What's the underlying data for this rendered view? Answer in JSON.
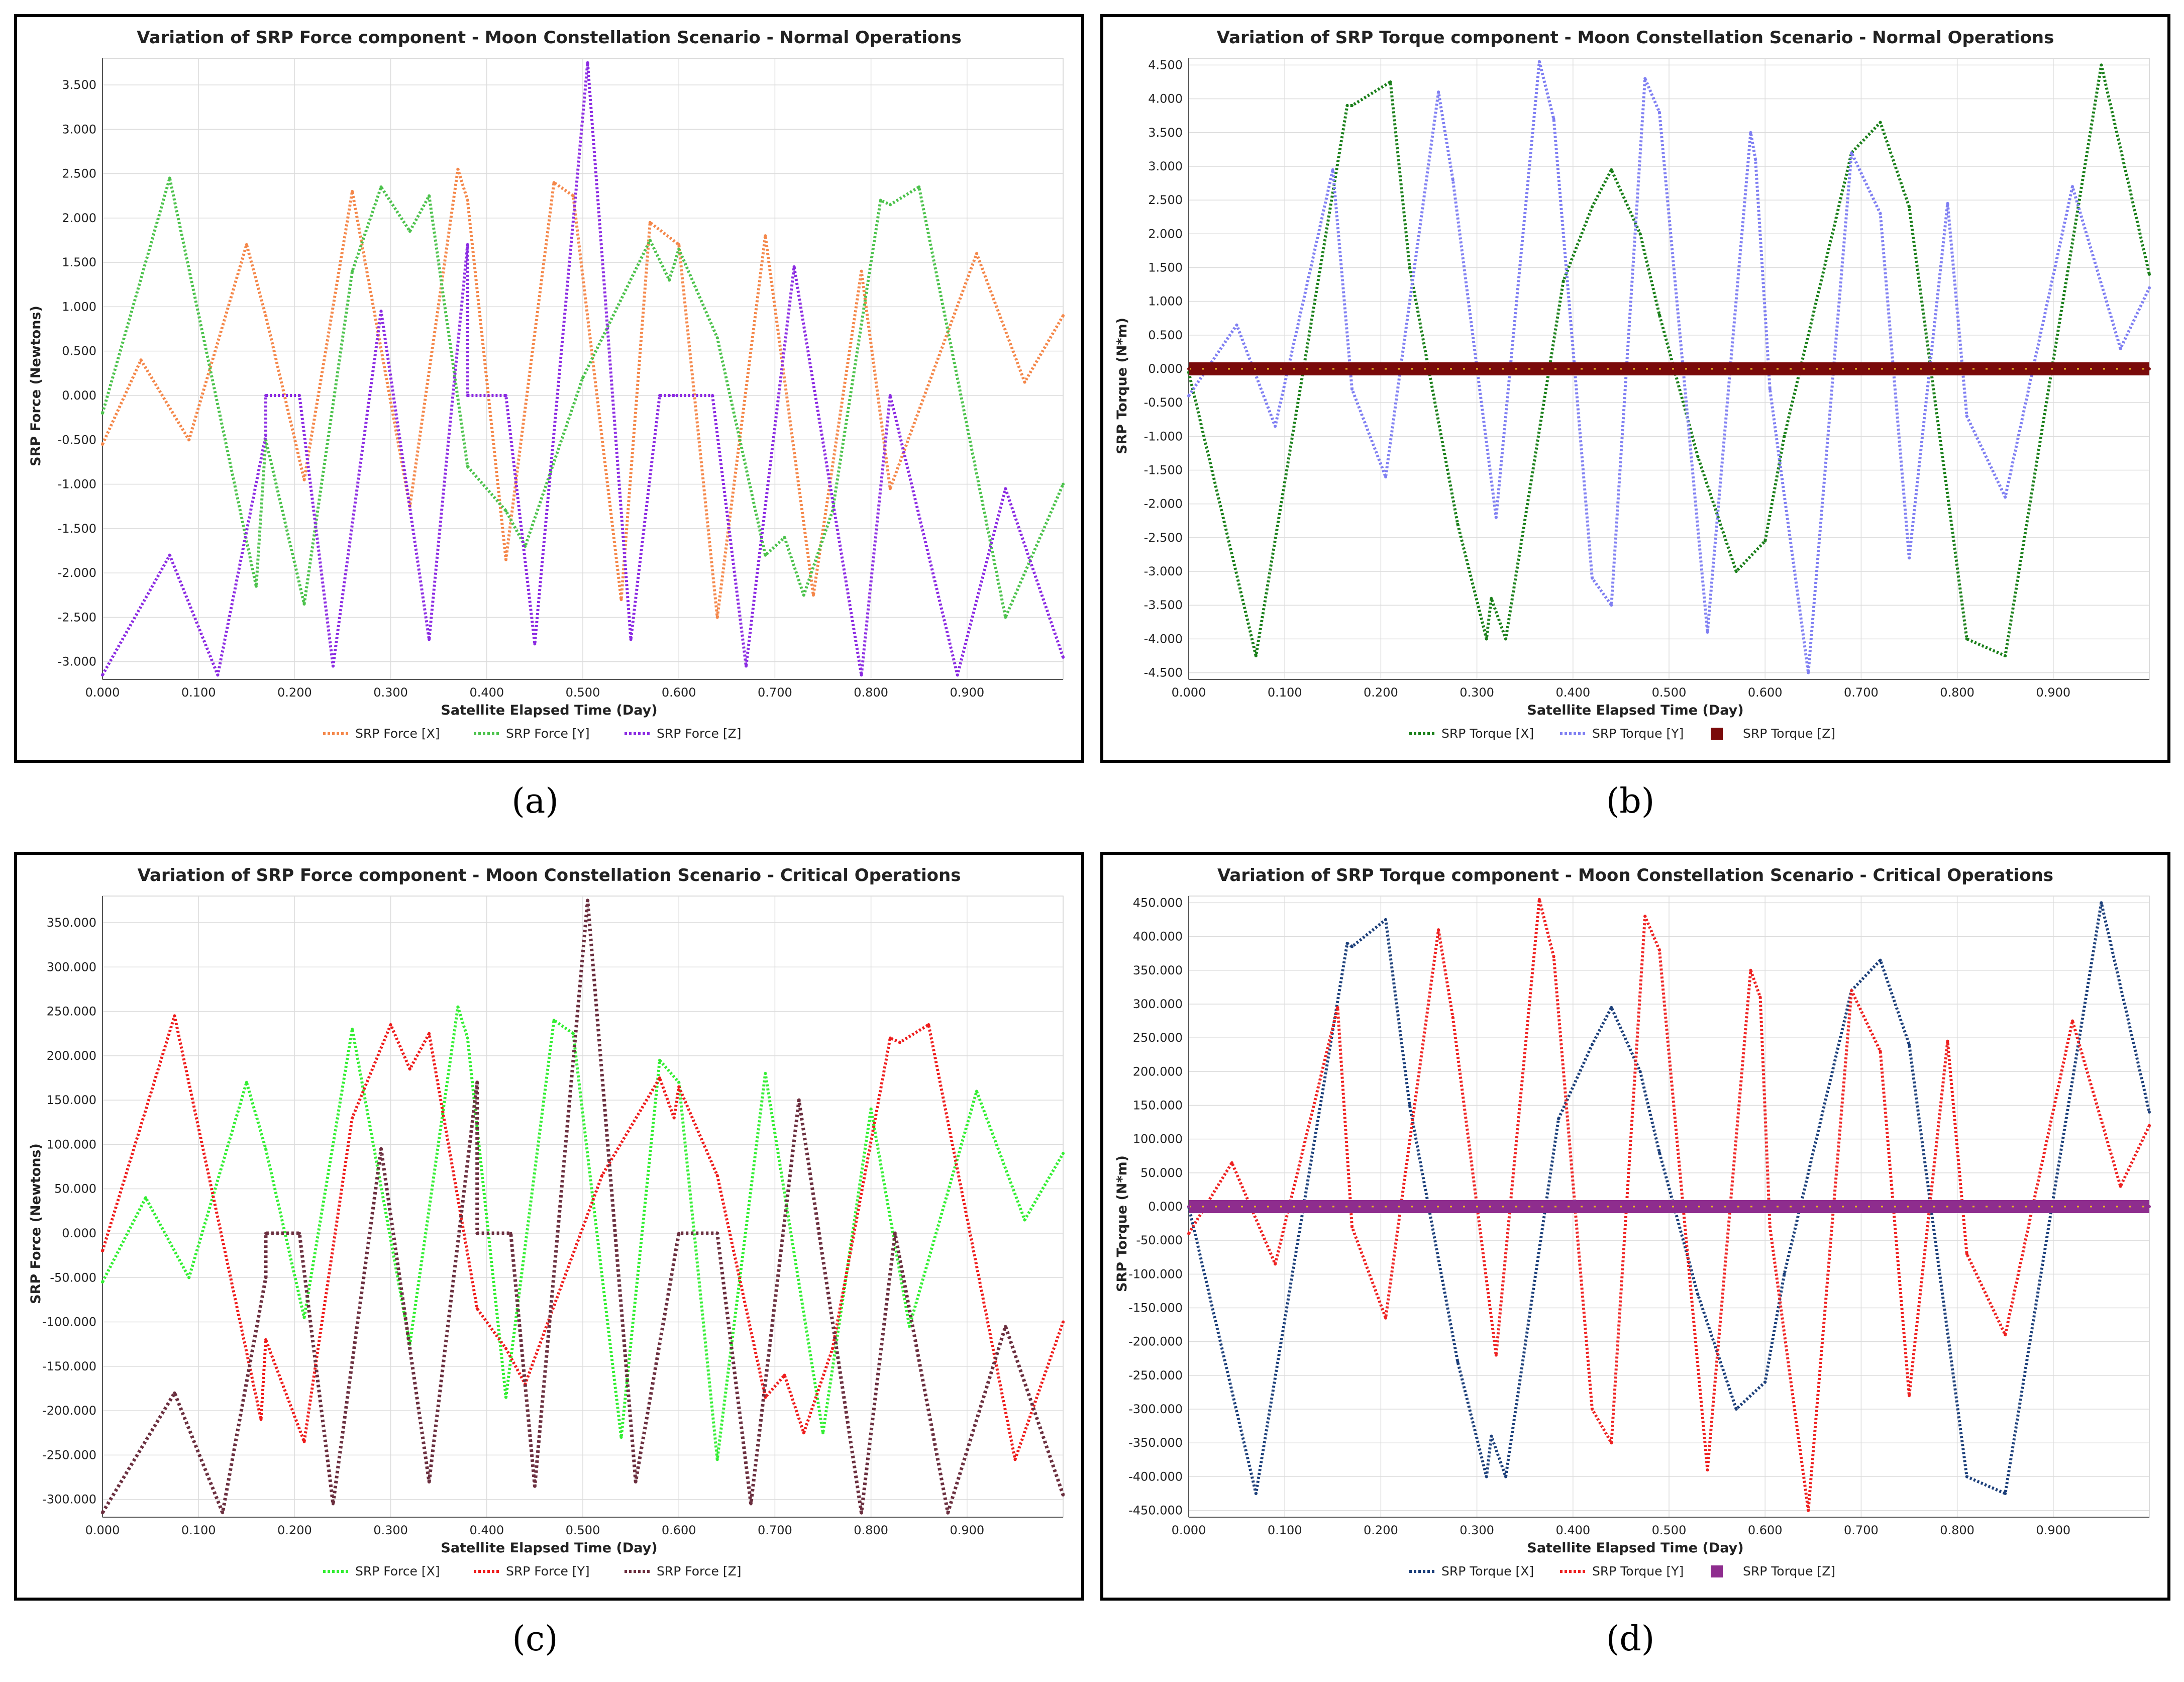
{
  "panel_labels": [
    "(a)",
    "(b)",
    "(c)",
    "(d)"
  ],
  "chart_data": [
    {
      "type": "line",
      "title": "Variation of SRP Force component - Moon Constellation Scenario - Normal Operations",
      "xlabel": "Satellite Elapsed Time (Day)",
      "ylabel": "SRP Force (Newtons)",
      "xlim": [
        0,
        1.0
      ],
      "ylim": [
        -3.2,
        3.8
      ],
      "x_ticks": [
        "0.000",
        "0.100",
        "0.200",
        "0.300",
        "0.400",
        "0.500",
        "0.600",
        "0.700",
        "0.800",
        "0.900"
      ],
      "x_tick_values": [
        0,
        0.1,
        0.2,
        0.3,
        0.4,
        0.5,
        0.6,
        0.7,
        0.8,
        0.9
      ],
      "y_ticks": [
        "-3.000",
        "-2.500",
        "-2.000",
        "-1.500",
        "-1.000",
        "-0.500",
        "0.000",
        "0.500",
        "1.000",
        "1.500",
        "2.000",
        "2.500",
        "3.000",
        "3.500"
      ],
      "y_tick_values": [
        -3,
        -2.5,
        -2,
        -1.5,
        -1,
        -0.5,
        0,
        0.5,
        1,
        1.5,
        2,
        2.5,
        3,
        3.5
      ],
      "series": [
        {
          "name": "SRP Force [X]",
          "color": "#f4874a",
          "marker": "dots",
          "x": [
            0.0,
            0.04,
            0.09,
            0.15,
            0.17,
            0.21,
            0.26,
            0.32,
            0.37,
            0.38,
            0.42,
            0.47,
            0.49,
            0.54,
            0.57,
            0.6,
            0.64,
            0.69,
            0.74,
            0.79,
            0.82,
            0.91,
            0.96,
            1.0
          ],
          "y": [
            -0.55,
            0.4,
            -0.5,
            1.7,
            0.9,
            -0.95,
            2.3,
            -1.25,
            2.55,
            2.2,
            -1.85,
            2.4,
            2.25,
            -2.3,
            1.95,
            1.7,
            -2.5,
            1.8,
            -2.25,
            1.4,
            -1.05,
            1.6,
            0.15,
            0.9
          ]
        },
        {
          "name": "SRP Force [Y]",
          "color": "#4cc24c",
          "marker": "dots",
          "x": [
            0.0,
            0.07,
            0.16,
            0.17,
            0.21,
            0.26,
            0.29,
            0.32,
            0.34,
            0.38,
            0.42,
            0.44,
            0.5,
            0.57,
            0.59,
            0.6,
            0.64,
            0.69,
            0.71,
            0.73,
            0.76,
            0.81,
            0.82,
            0.85,
            0.94,
            1.0
          ],
          "y": [
            -0.2,
            2.45,
            -2.15,
            -0.5,
            -2.35,
            1.4,
            2.35,
            1.85,
            2.25,
            -0.8,
            -1.3,
            -1.7,
            0.2,
            1.75,
            1.3,
            1.65,
            0.65,
            -1.8,
            -1.6,
            -2.25,
            -1.3,
            2.2,
            2.15,
            2.35,
            -2.5,
            -1.0
          ]
        },
        {
          "name": "SRP Force [Z]",
          "color": "#8b2be2",
          "marker": "dots",
          "x": [
            0.0,
            0.07,
            0.12,
            0.17,
            0.17,
            0.205,
            0.24,
            0.29,
            0.34,
            0.38,
            0.38,
            0.42,
            0.45,
            0.505,
            0.55,
            0.58,
            0.59,
            0.595,
            0.635,
            0.67,
            0.72,
            0.79,
            0.82,
            0.89,
            0.94,
            1.0
          ],
          "y": [
            -3.15,
            -1.8,
            -3.15,
            -0.45,
            0.0,
            0.0,
            -3.05,
            0.95,
            -2.75,
            1.7,
            0.0,
            0.0,
            -2.8,
            3.75,
            -2.75,
            0.0,
            0.0,
            0.0,
            0.0,
            -3.05,
            1.45,
            -3.15,
            0.0,
            -3.15,
            -1.05,
            -2.95
          ]
        }
      ]
    },
    {
      "type": "line",
      "title": "Variation of SRP Torque component - Moon Constellation Scenario - Normal Operations",
      "xlabel": "Satellite Elapsed Time (Day)",
      "ylabel": "SRP Torque (N*m)",
      "xlim": [
        0,
        1.0
      ],
      "ylim": [
        -4.6,
        4.6
      ],
      "x_ticks": [
        "0.000",
        "0.100",
        "0.200",
        "0.300",
        "0.400",
        "0.500",
        "0.600",
        "0.700",
        "0.800",
        "0.900"
      ],
      "x_tick_values": [
        0,
        0.1,
        0.2,
        0.3,
        0.4,
        0.5,
        0.6,
        0.7,
        0.8,
        0.9
      ],
      "y_ticks": [
        "-4.500",
        "-4.000",
        "-3.500",
        "-3.000",
        "-2.500",
        "-2.000",
        "-1.500",
        "-1.000",
        "-0.500",
        "0.000",
        "0.500",
        "1.000",
        "1.500",
        "2.000",
        "2.500",
        "3.000",
        "3.500",
        "4.000",
        "4.500"
      ],
      "y_tick_values": [
        -4.5,
        -4,
        -3.5,
        -3,
        -2.5,
        -2,
        -1.5,
        -1,
        -0.5,
        0,
        0.5,
        1,
        1.5,
        2,
        2.5,
        3,
        3.5,
        4,
        4.5
      ],
      "series": [
        {
          "name": "SRP Torque [X]",
          "color": "#1a7f1a",
          "marker": "dots",
          "x": [
            0.0,
            0.07,
            0.165,
            0.17,
            0.21,
            0.23,
            0.28,
            0.31,
            0.315,
            0.33,
            0.39,
            0.42,
            0.44,
            0.47,
            0.49,
            0.53,
            0.57,
            0.6,
            0.62,
            0.69,
            0.72,
            0.75,
            0.81,
            0.85,
            0.95,
            1.0
          ],
          "y": [
            -0.05,
            -4.25,
            3.9,
            3.9,
            4.25,
            1.5,
            -2.3,
            -4.0,
            -3.4,
            -4.0,
            1.3,
            2.4,
            2.95,
            2.0,
            0.8,
            -1.3,
            -3.0,
            -2.55,
            -1.0,
            3.2,
            3.65,
            2.4,
            -4.0,
            -4.25,
            4.5,
            1.4
          ]
        },
        {
          "name": "SRP Torque [Y]",
          "color": "#7f7ff2",
          "marker": "dots",
          "x": [
            0.0,
            0.05,
            0.09,
            0.15,
            0.17,
            0.205,
            0.26,
            0.275,
            0.32,
            0.365,
            0.38,
            0.42,
            0.44,
            0.475,
            0.49,
            0.54,
            0.585,
            0.59,
            0.605,
            0.645,
            0.69,
            0.72,
            0.75,
            0.79,
            0.81,
            0.85,
            0.92,
            0.97,
            1.0
          ],
          "y": [
            -0.4,
            0.65,
            -0.85,
            2.95,
            -0.3,
            -1.6,
            4.1,
            2.8,
            -2.2,
            4.55,
            3.7,
            -3.1,
            -3.5,
            4.3,
            3.8,
            -3.9,
            3.5,
            3.1,
            -0.3,
            -4.5,
            3.2,
            2.3,
            -2.8,
            2.45,
            -0.7,
            -1.9,
            2.7,
            0.3,
            1.2
          ]
        },
        {
          "name": "SRP Torque [Z]",
          "color": "#7a0a0a",
          "marker": "square",
          "x": [
            0.0,
            1.0
          ],
          "y": [
            0.0,
            0.0
          ]
        }
      ]
    },
    {
      "type": "line",
      "title": "Variation of SRP Force component - Moon Constellation Scenario - Critical Operations",
      "xlabel": "Satellite Elapsed Time (Day)",
      "ylabel": "SRP Force (Newtons)",
      "xlim": [
        0,
        1.0
      ],
      "ylim": [
        -320,
        380
      ],
      "x_ticks": [
        "0.000",
        "0.100",
        "0.200",
        "0.300",
        "0.400",
        "0.500",
        "0.600",
        "0.700",
        "0.800",
        "0.900"
      ],
      "x_tick_values": [
        0,
        0.1,
        0.2,
        0.3,
        0.4,
        0.5,
        0.6,
        0.7,
        0.8,
        0.9
      ],
      "y_ticks": [
        "-300.000",
        "-250.000",
        "-200.000",
        "-150.000",
        "-100.000",
        "-50.000",
        "0.000",
        "50.000",
        "100.000",
        "150.000",
        "200.000",
        "250.000",
        "300.000",
        "350.000"
      ],
      "y_tick_values": [
        -300,
        -250,
        -200,
        -150,
        -100,
        -50,
        0,
        50,
        100,
        150,
        200,
        250,
        300,
        350
      ],
      "series": [
        {
          "name": "SRP Force [X]",
          "color": "#33ee33",
          "marker": "dots",
          "x": [
            0.0,
            0.045,
            0.09,
            0.15,
            0.17,
            0.21,
            0.26,
            0.32,
            0.37,
            0.38,
            0.42,
            0.47,
            0.49,
            0.54,
            0.58,
            0.6,
            0.64,
            0.69,
            0.75,
            0.8,
            0.84,
            0.91,
            0.96,
            1.0
          ],
          "y": [
            -55,
            40,
            -50,
            170,
            95,
            -95,
            230,
            -125,
            255,
            220,
            -185,
            240,
            225,
            -230,
            195,
            170,
            -255,
            180,
            -225,
            140,
            -105,
            160,
            15,
            90
          ]
        },
        {
          "name": "SRP Force [Y]",
          "color": "#ee1c1c",
          "marker": "dots",
          "x": [
            0.0,
            0.075,
            0.165,
            0.17,
            0.21,
            0.26,
            0.3,
            0.32,
            0.34,
            0.39,
            0.42,
            0.44,
            0.52,
            0.58,
            0.595,
            0.6,
            0.64,
            0.69,
            0.71,
            0.73,
            0.76,
            0.82,
            0.83,
            0.86,
            0.95,
            1.0
          ],
          "y": [
            -20,
            245,
            -210,
            -120,
            -235,
            130,
            235,
            185,
            225,
            -85,
            -130,
            -170,
            65,
            175,
            130,
            165,
            65,
            -185,
            -160,
            -225,
            -130,
            220,
            215,
            235,
            -255,
            -100
          ]
        },
        {
          "name": "SRP Force [Z]",
          "color": "#6b2f3f",
          "marker": "triangle",
          "x": [
            0.0,
            0.075,
            0.125,
            0.17,
            0.17,
            0.205,
            0.24,
            0.29,
            0.34,
            0.39,
            0.39,
            0.425,
            0.45,
            0.505,
            0.555,
            0.6,
            0.6,
            0.64,
            0.675,
            0.725,
            0.79,
            0.825,
            0.88,
            0.94,
            1.0
          ],
          "y": [
            -315,
            -180,
            -315,
            -50,
            0,
            0,
            -305,
            95,
            -280,
            170,
            0,
            0,
            -285,
            375,
            -280,
            0,
            0,
            0,
            -305,
            150,
            -315,
            0,
            -315,
            -105,
            -295
          ]
        }
      ]
    },
    {
      "type": "line",
      "title": "Variation of SRP Torque component - Moon Constellation Scenario - Critical Operations",
      "xlabel": "Satellite Elapsed Time (Day)",
      "ylabel": "SRP Torque (N*m)",
      "xlim": [
        0,
        1.0
      ],
      "ylim": [
        -460,
        460
      ],
      "x_ticks": [
        "0.000",
        "0.100",
        "0.200",
        "0.300",
        "0.400",
        "0.500",
        "0.600",
        "0.700",
        "0.800",
        "0.900"
      ],
      "x_tick_values": [
        0,
        0.1,
        0.2,
        0.3,
        0.4,
        0.5,
        0.6,
        0.7,
        0.8,
        0.9
      ],
      "y_ticks": [
        "-450.000",
        "-400.000",
        "-350.000",
        "-300.000",
        "-250.000",
        "-200.000",
        "-150.000",
        "-100.000",
        "-50.000",
        "0.000",
        "50.000",
        "100.000",
        "150.000",
        "200.000",
        "250.000",
        "300.000",
        "350.000",
        "400.000",
        "450.000"
      ],
      "y_tick_values": [
        -450,
        -400,
        -350,
        -300,
        -250,
        -200,
        -150,
        -100,
        -50,
        0,
        50,
        100,
        150,
        200,
        250,
        300,
        350,
        400,
        450
      ],
      "series": [
        {
          "name": "SRP Torque [X]",
          "color": "#1c3f7a",
          "marker": "dots",
          "x": [
            0.0,
            0.07,
            0.165,
            0.17,
            0.205,
            0.23,
            0.28,
            0.31,
            0.315,
            0.33,
            0.385,
            0.42,
            0.44,
            0.47,
            0.49,
            0.53,
            0.57,
            0.6,
            0.62,
            0.69,
            0.72,
            0.75,
            0.81,
            0.85,
            0.95,
            1.0
          ],
          "y": [
            0,
            -425,
            390,
            385,
            425,
            150,
            -230,
            -400,
            -340,
            -400,
            130,
            240,
            295,
            200,
            80,
            -130,
            -300,
            -260,
            -100,
            320,
            365,
            240,
            -400,
            -425,
            450,
            140
          ]
        },
        {
          "name": "SRP Torque [Y]",
          "color": "#ee2222",
          "marker": "dots",
          "x": [
            0.0,
            0.045,
            0.09,
            0.155,
            0.17,
            0.205,
            0.26,
            0.275,
            0.32,
            0.365,
            0.38,
            0.42,
            0.44,
            0.475,
            0.49,
            0.54,
            0.585,
            0.595,
            0.605,
            0.645,
            0.69,
            0.72,
            0.75,
            0.79,
            0.81,
            0.85,
            0.92,
            0.97,
            1.0
          ],
          "y": [
            -40,
            65,
            -85,
            295,
            -30,
            -165,
            410,
            280,
            -220,
            455,
            370,
            -300,
            -350,
            430,
            380,
            -390,
            350,
            310,
            -30,
            -450,
            320,
            230,
            -280,
            245,
            -70,
            -190,
            275,
            30,
            120
          ]
        },
        {
          "name": "SRP Torque [Z]",
          "color": "#8e2d8e",
          "marker": "square",
          "x": [
            0.0,
            1.0
          ],
          "y": [
            0.0,
            0.0
          ]
        }
      ]
    }
  ]
}
